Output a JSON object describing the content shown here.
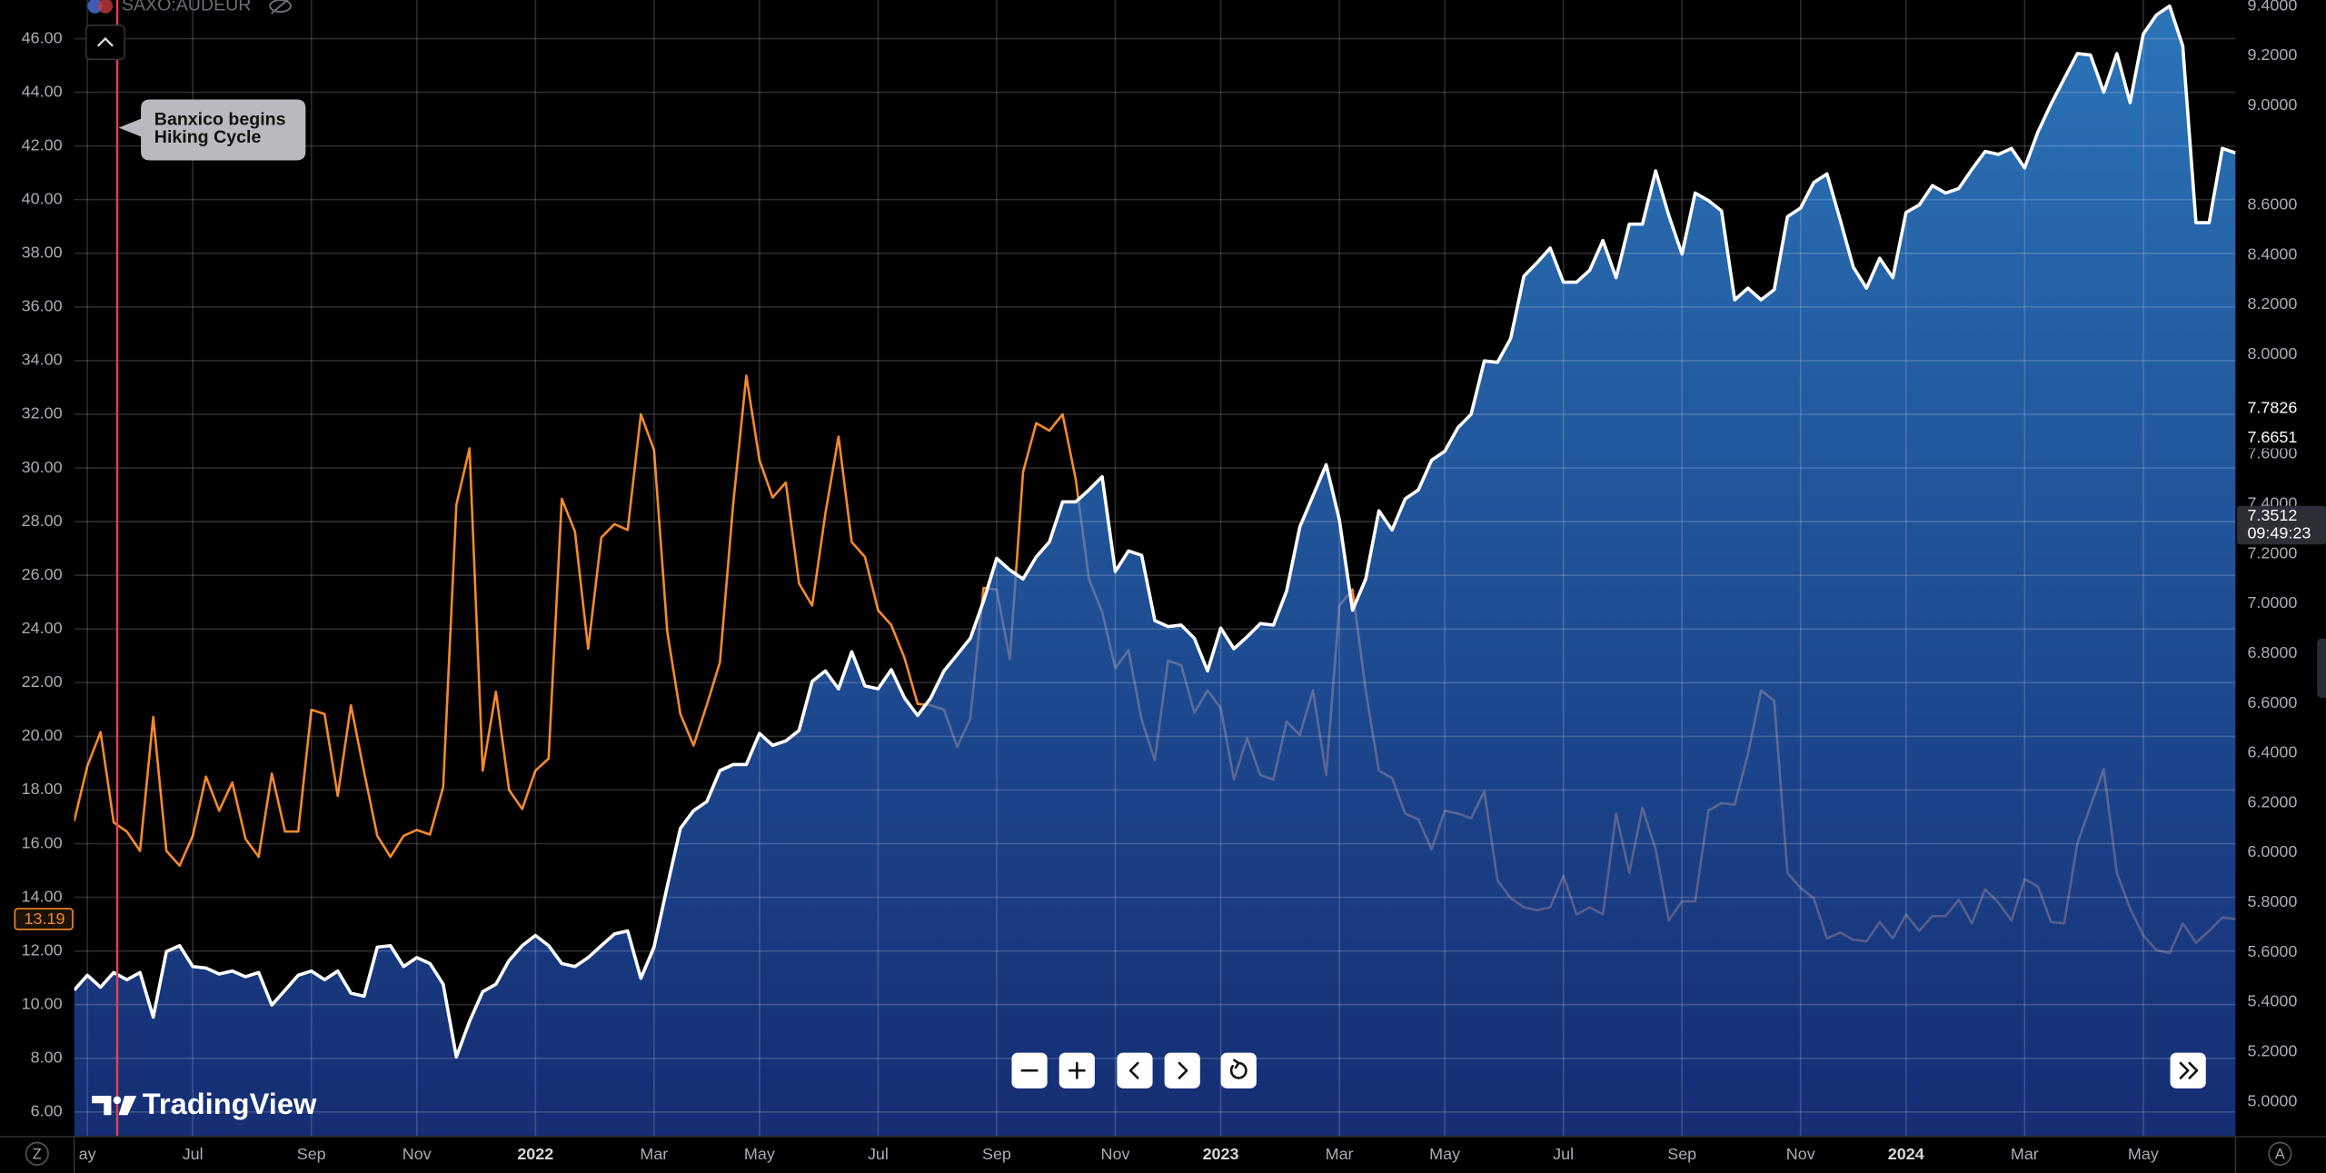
{
  "ui": {
    "symbol": "SAXO:AUDEUR",
    "logo": "TradingView",
    "scale_modes": [
      "Z",
      "A"
    ]
  },
  "chart_data": {
    "type": "line",
    "annotation": {
      "lines": [
        "Banxico begins",
        "Hiking Cycle"
      ]
    },
    "categories": [
      null,
      "ay",
      null,
      null,
      null,
      null,
      null,
      null,
      null,
      "Jul",
      null,
      null,
      null,
      null,
      null,
      null,
      null,
      null,
      "Sep",
      null,
      null,
      null,
      null,
      null,
      null,
      null,
      "Nov",
      null,
      null,
      null,
      null,
      null,
      null,
      null,
      null,
      "2022",
      null,
      null,
      null,
      null,
      null,
      null,
      null,
      null,
      "Mar",
      null,
      null,
      null,
      null,
      null,
      null,
      null,
      "May",
      null,
      null,
      null,
      null,
      null,
      null,
      null,
      null,
      "Jul",
      null,
      null,
      null,
      null,
      null,
      null,
      null,
      null,
      "Sep",
      null,
      null,
      null,
      null,
      null,
      null,
      null,
      null,
      "Nov",
      null,
      null,
      null,
      null,
      null,
      null,
      null,
      "2023",
      null,
      null,
      null,
      null,
      null,
      null,
      null,
      null,
      "Mar",
      null,
      null,
      null,
      null,
      null,
      null,
      null,
      "May",
      null,
      null,
      null,
      null,
      null,
      null,
      null,
      null,
      "Jul",
      null,
      null,
      null,
      null,
      null,
      null,
      null,
      null,
      "Sep",
      null,
      null,
      null,
      null,
      null,
      null,
      null,
      null,
      "Nov",
      null,
      null,
      null,
      null,
      null,
      null,
      null,
      "2024",
      null,
      null,
      null,
      null,
      null,
      null,
      null,
      null,
      "Mar",
      null,
      null,
      null,
      null,
      null,
      null,
      null,
      null,
      "May",
      null,
      null,
      null,
      null,
      null,
      null,
      null
    ],
    "series": [
      {
        "color": "#f5892a",
        "axis": "y",
        "values": [
          16.84,
          18.89,
          20.16,
          16.79,
          16.45,
          15.73,
          20.72,
          15.73,
          15.18,
          16.29,
          18.5,
          17.23,
          18.28,
          16.18,
          15.51,
          18.61,
          16.45,
          16.45,
          20.99,
          20.83,
          17.78,
          21.16,
          18.67,
          16.29,
          15.51,
          16.29,
          16.51,
          16.34,
          18.11,
          28.63,
          30.73,
          18.72,
          21.66,
          18.0,
          17.29,
          18.72,
          19.17,
          28.85,
          27.63,
          23.26,
          27.41,
          27.91,
          27.69,
          32.0,
          30.67,
          23.92,
          20.83,
          19.66,
          21.16,
          22.76,
          28.63,
          33.44,
          30.29,
          28.9,
          29.46,
          25.7,
          24.87,
          28.3,
          31.17,
          27.24,
          26.69,
          24.7,
          24.15,
          22.93,
          21.21,
          21.16,
          20.99,
          19.61,
          20.66,
          25.53,
          25.47,
          22.87,
          29.85,
          31.67,
          31.39,
          32.0,
          29.57,
          25.86,
          24.64,
          22.54,
          23.21,
          20.61,
          19.11,
          22.82,
          22.65,
          20.88,
          21.71,
          21.05,
          18.39,
          19.94,
          18.56,
          18.39,
          20.55,
          20.05,
          21.71,
          18.56,
          24.87,
          25.47,
          21.71,
          18.72,
          18.45,
          17.12,
          16.9,
          15.79,
          17.23,
          17.12,
          16.95,
          17.95,
          14.63,
          13.97,
          13.63,
          13.52,
          13.63,
          14.8,
          13.36,
          13.63,
          13.36,
          17.12,
          14.91,
          17.34,
          15.79,
          13.14,
          13.85,
          13.85,
          17.23,
          17.51,
          17.45,
          19.33,
          21.71,
          21.32,
          14.91,
          14.35,
          13.97,
          12.47,
          12.69,
          12.42,
          12.36,
          13.08,
          12.47,
          13.36,
          12.75,
          13.3,
          13.3,
          13.91,
          13.03,
          14.3,
          13.8,
          13.14,
          14.68,
          14.41,
          13.08,
          13.03,
          16.01,
          17.4,
          18.78,
          14.91,
          13.58,
          12.58,
          12.03,
          11.92,
          13.03,
          12.31,
          12.75,
          13.25,
          13.19
        ]
      },
      {
        "color": "#ffffff",
        "axis": "y2",
        "fill": [
          "#3a9cf8",
          "#1c3d9c"
        ],
        "values": [
          5.448,
          5.508,
          5.46,
          5.519,
          5.49,
          5.519,
          5.34,
          5.603,
          5.627,
          5.543,
          5.537,
          5.513,
          5.525,
          5.502,
          5.519,
          5.388,
          5.448,
          5.508,
          5.525,
          5.49,
          5.525,
          5.436,
          5.424,
          5.621,
          5.627,
          5.543,
          5.579,
          5.555,
          5.472,
          5.18,
          5.323,
          5.442,
          5.472,
          5.567,
          5.627,
          5.668,
          5.627,
          5.555,
          5.543,
          5.579,
          5.627,
          5.674,
          5.686,
          5.496,
          5.621,
          5.865,
          6.098,
          6.169,
          6.205,
          6.33,
          6.354,
          6.354,
          6.479,
          6.431,
          6.449,
          6.491,
          6.688,
          6.73,
          6.658,
          6.807,
          6.67,
          6.658,
          6.735,
          6.622,
          6.551,
          6.622,
          6.73,
          6.795,
          6.861,
          7.01,
          7.182,
          7.135,
          7.099,
          7.188,
          7.248,
          7.409,
          7.409,
          7.457,
          7.51,
          7.129,
          7.212,
          7.194,
          6.932,
          6.908,
          6.914,
          6.861,
          6.73,
          6.902,
          6.819,
          6.867,
          6.92,
          6.914,
          7.051,
          7.308,
          7.433,
          7.558,
          7.337,
          6.974,
          7.099,
          7.373,
          7.296,
          7.421,
          7.457,
          7.576,
          7.612,
          7.707,
          7.761,
          7.975,
          7.969,
          8.065,
          8.315,
          8.369,
          8.428,
          8.291,
          8.291,
          8.339,
          8.458,
          8.309,
          8.524,
          8.524,
          8.738,
          8.559,
          8.404,
          8.649,
          8.619,
          8.577,
          8.22,
          8.267,
          8.22,
          8.261,
          8.554,
          8.589,
          8.691,
          8.726,
          8.542,
          8.351,
          8.267,
          8.387,
          8.309,
          8.571,
          8.601,
          8.679,
          8.649,
          8.667,
          8.744,
          8.816,
          8.804,
          8.828,
          8.75,
          8.893,
          9.006,
          9.108,
          9.209,
          9.203,
          9.054,
          9.209,
          9.012,
          9.287,
          9.364,
          9.4,
          9.239,
          8.53,
          8.53,
          8.828,
          8.81
        ]
      }
    ],
    "ylim": [
      5.11,
      47.44
    ],
    "yticks": [
      {
        "value": 6,
        "label": "6.00"
      },
      {
        "value": 8,
        "label": "8.00"
      },
      {
        "value": 10,
        "label": "10.00"
      },
      {
        "value": 12,
        "label": "12.00"
      },
      {
        "value": 14,
        "label": "14.00"
      },
      {
        "value": 16,
        "label": "16.00"
      },
      {
        "value": 18,
        "label": "18.00"
      },
      {
        "value": 20,
        "label": "20.00"
      },
      {
        "value": 22,
        "label": "22.00"
      },
      {
        "value": 24,
        "label": "24.00"
      },
      {
        "value": 26,
        "label": "26.00"
      },
      {
        "value": 28,
        "label": "28.00"
      },
      {
        "value": 30,
        "label": "30.00"
      },
      {
        "value": 32,
        "label": "32.00"
      },
      {
        "value": 34,
        "label": "34.00"
      },
      {
        "value": 36,
        "label": "36.00"
      },
      {
        "value": 38,
        "label": "38.00"
      },
      {
        "value": 40,
        "label": "40.00"
      },
      {
        "value": 42,
        "label": "42.00"
      },
      {
        "value": 44,
        "label": "44.00"
      },
      {
        "value": 46,
        "label": "46.00"
      }
    ],
    "y2lim": [
      4.863,
      9.424
    ],
    "y2ticks": [
      {
        "value": 5.0,
        "label": "5.0000"
      },
      {
        "value": 5.2,
        "label": "5.2000"
      },
      {
        "value": 5.4,
        "label": "5.4000"
      },
      {
        "value": 5.6,
        "label": "5.6000"
      },
      {
        "value": 5.8,
        "label": "5.8000"
      },
      {
        "value": 6.0,
        "label": "6.0000"
      },
      {
        "value": 6.2,
        "label": "6.2000"
      },
      {
        "value": 6.4,
        "label": "6.4000"
      },
      {
        "value": 6.6,
        "label": "6.6000"
      },
      {
        "value": 6.8,
        "label": "6.8000"
      },
      {
        "value": 7.0,
        "label": "7.0000"
      },
      {
        "value": 7.2,
        "label": "7.2000"
      },
      {
        "value": 7.4,
        "label": "7.4000"
      },
      {
        "value": 7.6,
        "label": "7.6000"
      },
      {
        "value": 8.0,
        "label": "8.0000"
      },
      {
        "value": 8.2,
        "label": "8.2000"
      },
      {
        "value": 8.4,
        "label": "8.4000"
      },
      {
        "value": 8.6,
        "label": "8.6000"
      },
      {
        "value": 9.0,
        "label": "9.0000"
      },
      {
        "value": 9.2,
        "label": "9.2000"
      },
      {
        "value": 9.4,
        "label": "9.4000"
      }
    ],
    "price_labels": [
      {
        "value": 13.19,
        "axis": "y"
      },
      {
        "value": 7.7826,
        "axis": "y2"
      },
      {
        "value": 7.6651,
        "axis": "y2"
      },
      {
        "value": 7.3512,
        "axis": "y2",
        "time": "09:49:23"
      }
    ],
    "grid": true
  }
}
